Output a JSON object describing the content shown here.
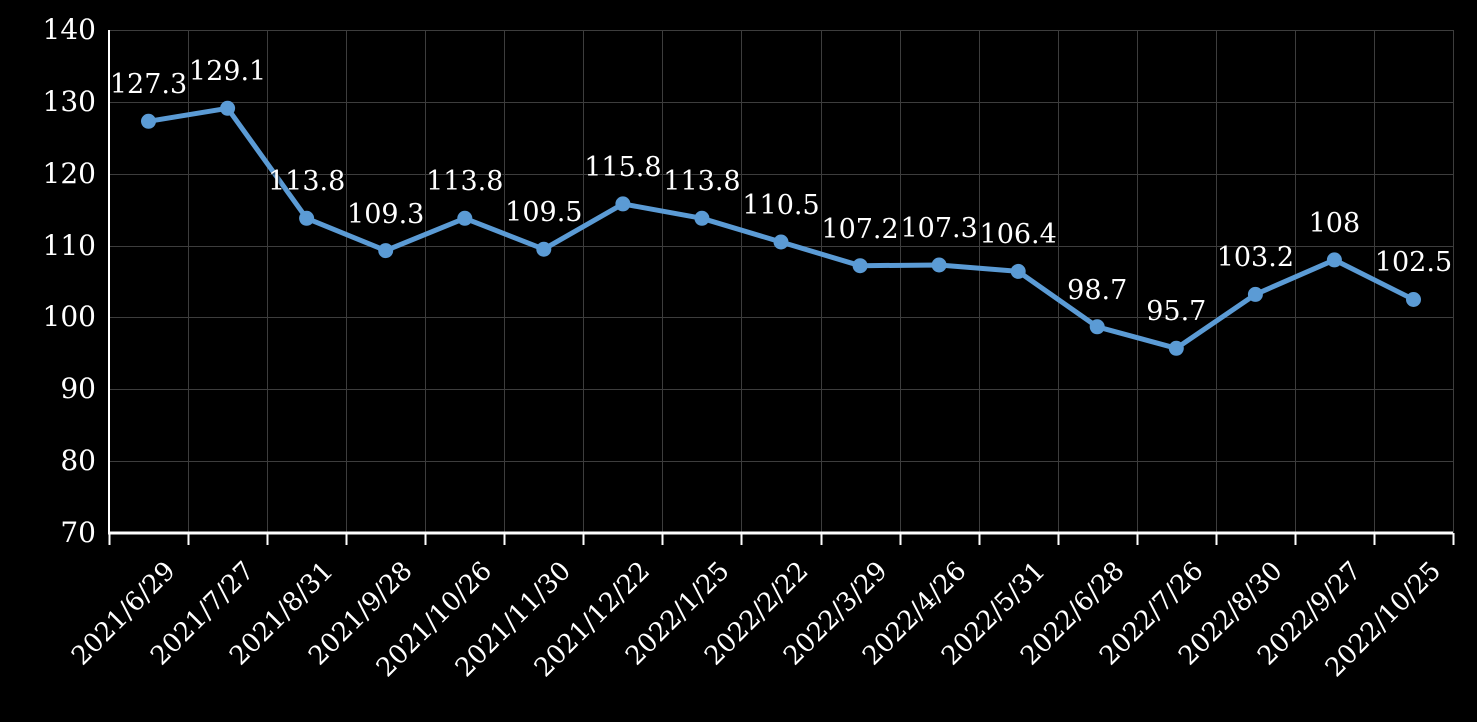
{
  "chart_data": {
    "type": "line",
    "categories": [
      "2021/6/29",
      "2021/7/27",
      "2021/8/31",
      "2021/9/28",
      "2021/10/26",
      "2021/11/30",
      "2021/12/22",
      "2022/1/25",
      "2022/2/22",
      "2022/3/29",
      "2022/4/26",
      "2022/5/31",
      "2022/6/28",
      "2022/7/26",
      "2022/8/30",
      "2022/9/27",
      "2022/10/25"
    ],
    "values": [
      127.3,
      129.1,
      113.8,
      109.3,
      113.8,
      109.5,
      115.8,
      113.8,
      110.5,
      107.2,
      107.3,
      106.4,
      98.7,
      95.7,
      103.2,
      108,
      102.5
    ],
    "point_labels": [
      "127.3",
      "129.1",
      "113.8",
      "109.3",
      "113.8",
      "109.5",
      "115.8",
      "113.8",
      "110.5",
      "107.2",
      "107.3",
      "106.4",
      "98.7",
      "95.7",
      "103.2",
      "108",
      "102.5"
    ],
    "y_tick_labels": [
      "140",
      "130",
      "120",
      "110",
      "100",
      "90",
      "80",
      "70"
    ],
    "ylim": [
      70,
      140
    ],
    "y_step": 10,
    "xlabel": "",
    "ylabel": "",
    "title": "",
    "grid": true,
    "legend_position": "none",
    "colors": {
      "series": "#5B9BD5",
      "background": "#000000",
      "gridline": "#3d3d3d",
      "axis": "#ffffff",
      "text": "#ffffff"
    }
  }
}
